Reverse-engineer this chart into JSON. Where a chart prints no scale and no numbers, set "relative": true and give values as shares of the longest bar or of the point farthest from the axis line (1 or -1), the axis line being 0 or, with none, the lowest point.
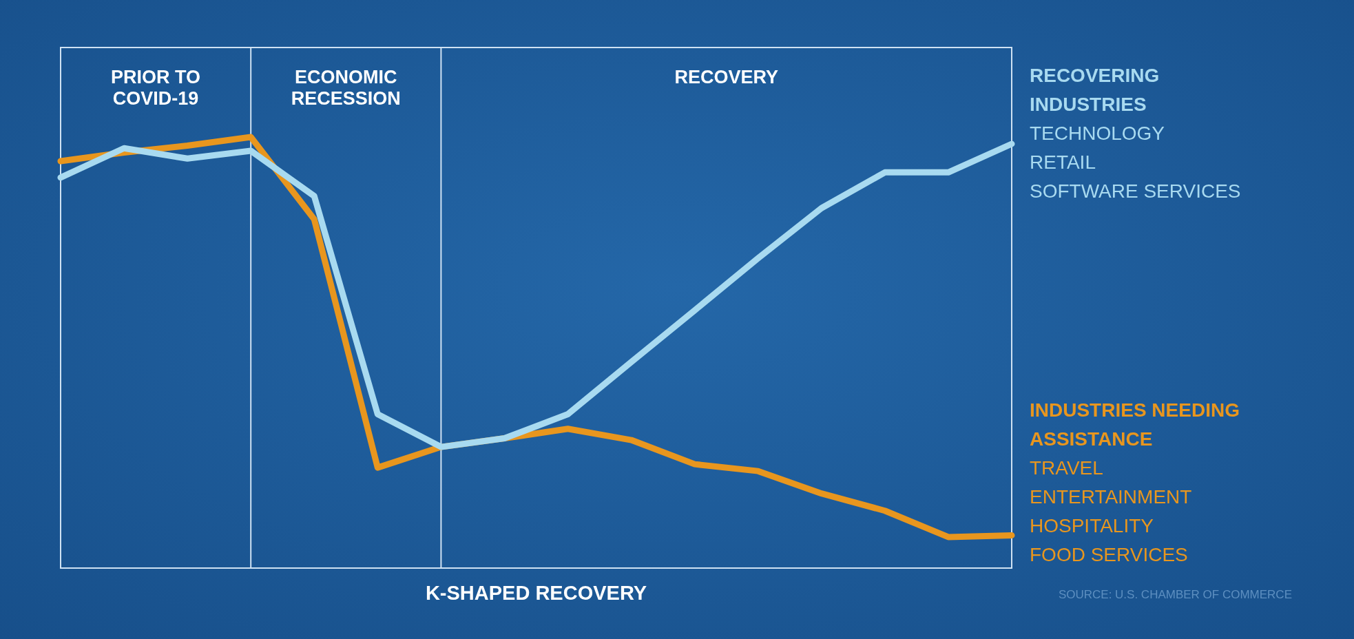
{
  "chart_data": {
    "type": "line",
    "relative": true,
    "xlabel": "K-SHAPED RECOVERY",
    "categories": [
      null,
      null,
      null,
      null,
      null,
      null,
      null,
      null,
      null,
      null,
      null,
      null,
      null,
      null,
      null,
      null
    ],
    "marker": "none",
    "line_style": "solid",
    "series": [
      {
        "name": "INDUSTRIES NEEDING ASSISTANCE\nTRAVEL\nENTERTAINMENT\nHOSPITALITY\nFOOD SERVICES",
        "color": "#e8961e",
        "values": [
          0.944,
          0.964,
          0.98,
          1.0,
          0.809,
          0.233,
          0.281,
          0.301,
          0.323,
          0.297,
          0.241,
          0.225,
          0.173,
          0.133,
          0.072,
          0.076
        ]
      },
      {
        "name": "RECOVERING INDUSTRIES\nTECHNOLOGY\nRETAIL\nSOFTWARE SERVICES",
        "color": "#a8daf0",
        "values": [
          0.906,
          0.974,
          0.95,
          0.968,
          0.863,
          0.357,
          0.281,
          0.301,
          0.357,
          0.478,
          0.598,
          0.719,
          0.835,
          0.918,
          0.918,
          0.984
        ]
      }
    ],
    "annotations": [
      "PRIOR TO COVID-19",
      "ECONOMIC RECESSION",
      "RECOVERY",
      "SOURCE: U.S. CHAMBER OF COMMERCE"
    ]
  }
}
